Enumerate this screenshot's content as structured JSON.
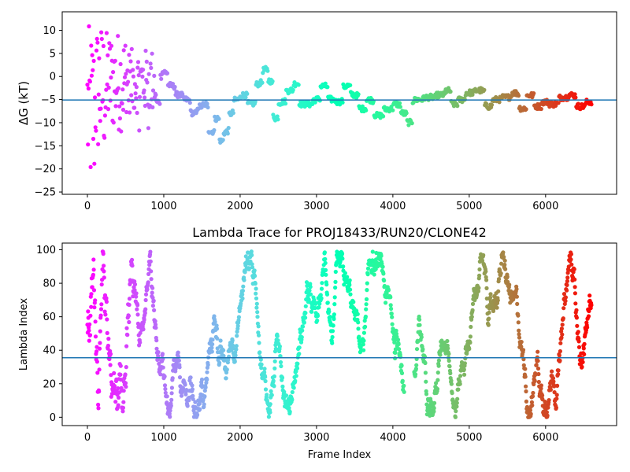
{
  "chart_data": [
    {
      "type": "scatter",
      "title": "",
      "xlabel": "",
      "ylabel": "ΔG (kT)",
      "xlim": [
        -330,
        6930
      ],
      "ylim": [
        -25.5,
        14
      ],
      "xticks": [
        0,
        1000,
        2000,
        3000,
        4000,
        5000,
        6000
      ],
      "xtick_labels": [
        "0",
        "1000",
        "2000",
        "3000",
        "4000",
        "5000",
        "6000"
      ],
      "yticks": [
        -25,
        -20,
        -15,
        -10,
        -5,
        0,
        5,
        10
      ],
      "ytick_labels": [
        "−25",
        "−20",
        "−15",
        "−10",
        "−5",
        "0",
        "5",
        "10"
      ],
      "reference_line": -5.1,
      "reference_color": "#1f77b4",
      "colormap": "rainbow (red at frame 0 → violet at last frame)",
      "x_max": 6600,
      "grid": false
    },
    {
      "type": "scatter",
      "title": "Lambda Trace for PROJ18433/RUN20/CLONE42",
      "xlabel": "Frame Index",
      "ylabel": "Lambda Index",
      "xlim": [
        -330,
        6930
      ],
      "ylim": [
        -5,
        104
      ],
      "xticks": [
        0,
        1000,
        2000,
        3000,
        4000,
        5000,
        6000
      ],
      "xtick_labels": [
        "0",
        "1000",
        "2000",
        "3000",
        "4000",
        "5000",
        "6000"
      ],
      "yticks": [
        0,
        20,
        40,
        60,
        80,
        100
      ],
      "ytick_labels": [
        "0",
        "20",
        "40",
        "60",
        "80",
        "100"
      ],
      "reference_line": 35.5,
      "reference_color": "#1f77b4",
      "colormap": "rainbow (red at frame 0 → violet at last frame)",
      "x_max": 6600,
      "lambda_range": [
        0,
        99
      ],
      "grid": false
    }
  ]
}
